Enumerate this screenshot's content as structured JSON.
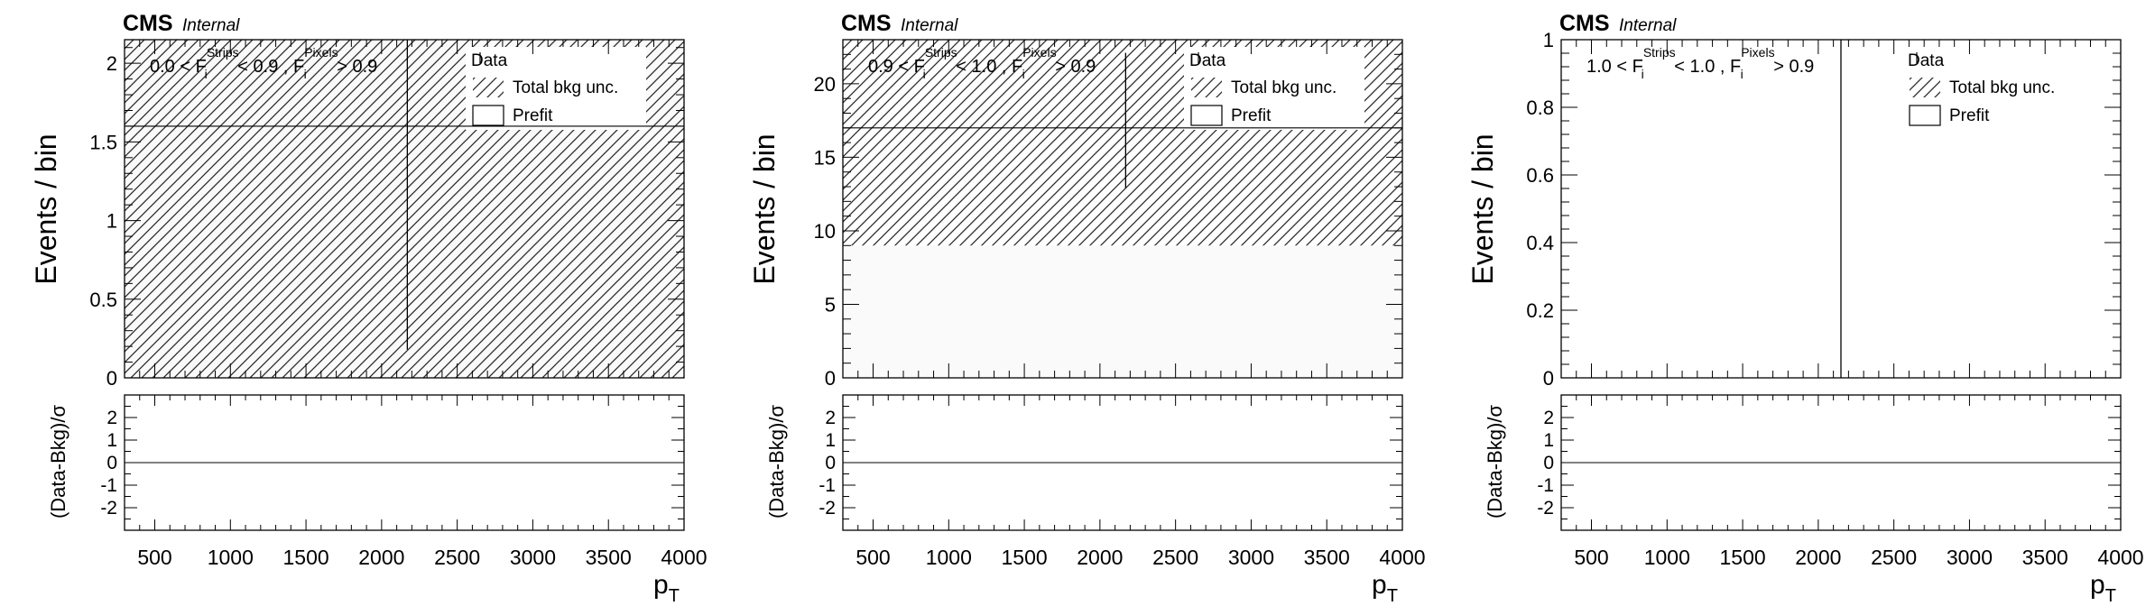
{
  "figure": {
    "experiment_label": "CMS",
    "status_label": "Internal"
  },
  "legend": {
    "data": "Data",
    "bkg_unc": "Total bkg unc.",
    "prefit": "Prefit"
  },
  "chart_data": [
    {
      "type": "bar",
      "region_label": {
        "lo": "0.0",
        "mid": "0.9",
        "pix": "0.9"
      },
      "ylabel": "Events / bin",
      "ratio_ylabel": "(Data-Bkg)/σ",
      "xlabel": "p",
      "xlabel_sub": "T",
      "xlim": [
        300,
        4000
      ],
      "ylim": [
        0,
        2.15
      ],
      "yticks": [
        0,
        0.5,
        1,
        1.5,
        2
      ],
      "yminor_step": 0.1,
      "ratio_ylim": [
        -3,
        3
      ],
      "ratio_yticks": [
        -2,
        -1,
        0,
        1,
        2
      ],
      "xticks": [
        500,
        1000,
        1500,
        2000,
        2500,
        3000,
        3500,
        4000
      ],
      "prefit_band": {
        "x": [
          300,
          4000
        ],
        "y": [
          0,
          2.15
        ]
      },
      "bkg_unc_band": {
        "x": [
          300,
          4000
        ],
        "y": [
          0,
          2.15
        ]
      },
      "bkg_line": 1.6,
      "data_points": [
        {
          "x": 2170,
          "y": 1.6,
          "yerr_low": 1.42,
          "yerr_high": 1.2
        }
      ]
    },
    {
      "type": "bar",
      "region_label": {
        "lo": "0.9",
        "mid": "1.0",
        "pix": "0.9"
      },
      "ylabel": "Events / bin",
      "ratio_ylabel": "(Data-Bkg)/σ",
      "xlabel": "p",
      "xlabel_sub": "T",
      "xlim": [
        300,
        4000
      ],
      "ylim": [
        0,
        23
      ],
      "yticks": [
        0,
        5,
        10,
        15,
        20
      ],
      "yminor_step": 1,
      "ratio_ylim": [
        -3,
        3
      ],
      "ratio_yticks": [
        -2,
        -1,
        0,
        1,
        2
      ],
      "xticks": [
        500,
        1000,
        1500,
        2000,
        2500,
        3000,
        3500,
        4000
      ],
      "prefit_band": {
        "x": [
          300,
          4000
        ],
        "y": [
          0,
          9
        ]
      },
      "bkg_unc_band": {
        "x": [
          300,
          4000
        ],
        "y": [
          9,
          23
        ]
      },
      "bkg_line": 17,
      "data_points": [
        {
          "x": 2170,
          "y": 17,
          "yerr_low": 4.1,
          "yerr_high": 5.1
        }
      ]
    },
    {
      "type": "bar",
      "region_label": {
        "lo": "1.0",
        "mid": "1.0",
        "pix": "0.9"
      },
      "ylabel": "Events / bin",
      "ratio_ylabel": "(Data-Bkg)/σ",
      "xlabel": "p",
      "xlabel_sub": "T",
      "xlim": [
        300,
        4000
      ],
      "ylim": [
        0,
        1
      ],
      "yticks": [
        0,
        0.2,
        0.4,
        0.6,
        0.8,
        1
      ],
      "yminor_step": 0.04,
      "ratio_ylim": [
        -3,
        3
      ],
      "ratio_yticks": [
        -2,
        -1,
        0,
        1,
        2
      ],
      "xticks": [
        500,
        1000,
        1500,
        2000,
        2500,
        3000,
        3500,
        4000
      ],
      "prefit_band": null,
      "bkg_unc_band": null,
      "bkg_line": null,
      "data_points": [
        {
          "x": 2150,
          "y": 0.5,
          "yerr_low": 0.5,
          "yerr_high": 0.5
        }
      ]
    }
  ]
}
